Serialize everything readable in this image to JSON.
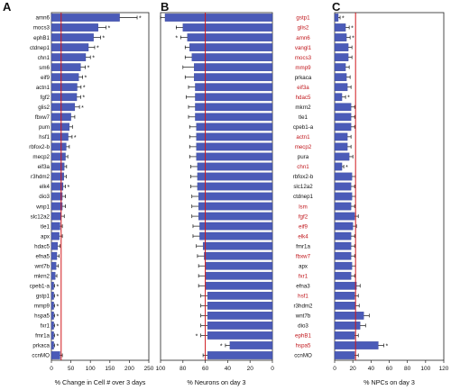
{
  "chart_data": [
    {
      "type": "bar",
      "panel": "A",
      "orientation": "horizontal",
      "xlabel": "% Change in Cell # over 3 days",
      "xlim": [
        0,
        250
      ],
      "xticks": [
        "0",
        "50",
        "100",
        "150",
        "200",
        "250"
      ],
      "reference_line": 25,
      "categories": [
        "amn6",
        "mocs3",
        "ephB1",
        "ctdnep1",
        "chn1",
        "sm6",
        "eif9",
        "actn1",
        "fgf2",
        "glis2",
        "fbxw7",
        "pum",
        "hsf1",
        "rbfox2-b",
        "mecp2",
        "eif3a",
        "r3hdm2",
        "elk4",
        "dio3",
        "wnp1",
        "slc12a2",
        "tle1",
        "apx",
        "hdac5",
        "efna5",
        "wnt7b",
        "mkrn2",
        "cpeb1-a",
        "gstp1",
        "mmp9",
        "hspa5",
        "fxr1",
        "fmr1a",
        "prkaca",
        "ccnMO"
      ],
      "values": [
        175,
        120,
        108,
        95,
        88,
        75,
        70,
        66,
        65,
        60,
        50,
        46,
        43,
        38,
        36,
        33,
        32,
        30,
        28,
        28,
        25,
        22,
        20,
        16,
        14,
        12,
        10,
        6,
        6,
        6,
        6,
        6,
        6,
        6,
        22
      ],
      "errors": [
        45,
        20,
        18,
        16,
        12,
        12,
        10,
        10,
        10,
        12,
        10,
        8,
        10,
        8,
        6,
        6,
        6,
        6,
        8,
        8,
        8,
        6,
        8,
        6,
        6,
        6,
        4,
        2,
        2,
        2,
        2,
        2,
        2,
        2,
        6
      ],
      "stars": [
        true,
        true,
        true,
        true,
        true,
        true,
        true,
        true,
        true,
        true,
        false,
        false,
        true,
        false,
        false,
        false,
        false,
        true,
        false,
        false,
        false,
        false,
        false,
        false,
        false,
        false,
        false,
        true,
        true,
        true,
        true,
        true,
        true,
        true,
        false
      ]
    },
    {
      "type": "bar",
      "panel": "B",
      "orientation": "horizontal-reversed",
      "xlabel": "% Neurons on day 3",
      "xlim": [
        0,
        100
      ],
      "xticks": [
        "100",
        "80",
        "60",
        "40",
        "20",
        "0"
      ],
      "reference_line": 60,
      "categories": [
        "gstp1",
        "glis2",
        "amn6",
        "vangl1",
        "mocs3",
        "mmp9",
        "prkaca",
        "eif3a",
        "hdac5",
        "mkrn2",
        "tle1",
        "cpeb1-a",
        "actn1",
        "mecp2",
        "pura",
        "chn1",
        "rbfox2-b",
        "slc12a2",
        "ctdnep1",
        "lsm",
        "fgf2",
        "eif9",
        "elk4",
        "fmr1a",
        "fbxw7",
        "apx",
        "fxr1",
        "efna3",
        "hsf1",
        "r3hdm2",
        "wnt7b",
        "dio3",
        "ephB1",
        "hspa5",
        "ccnMO"
      ],
      "red_labels": [
        true,
        true,
        true,
        true,
        true,
        true,
        false,
        true,
        true,
        false,
        false,
        false,
        true,
        true,
        false,
        true,
        false,
        false,
        false,
        true,
        true,
        true,
        true,
        false,
        true,
        false,
        true,
        false,
        true,
        false,
        false,
        false,
        true,
        true,
        false
      ],
      "values": [
        96,
        80,
        76,
        74,
        72,
        70,
        70,
        69,
        69,
        69,
        69,
        68,
        68,
        68,
        68,
        67,
        67,
        67,
        66,
        66,
        66,
        65,
        65,
        62,
        61,
        60,
        60,
        60,
        58,
        58,
        58,
        58,
        58,
        38,
        58
      ],
      "errors": [
        4,
        6,
        6,
        4,
        6,
        10,
        8,
        6,
        8,
        6,
        6,
        6,
        6,
        6,
        6,
        6,
        6,
        6,
        6,
        6,
        6,
        6,
        6,
        6,
        6,
        6,
        6,
        6,
        6,
        6,
        6,
        6,
        6,
        4,
        4
      ],
      "stars": [
        false,
        false,
        true,
        false,
        false,
        false,
        false,
        false,
        false,
        false,
        false,
        false,
        false,
        false,
        false,
        false,
        false,
        false,
        false,
        false,
        false,
        false,
        false,
        false,
        false,
        false,
        false,
        false,
        false,
        false,
        false,
        false,
        true,
        true,
        false
      ]
    },
    {
      "type": "bar",
      "panel": "C",
      "orientation": "horizontal",
      "xlabel": "% NPCs on day 3",
      "xlim": [
        0,
        120
      ],
      "xticks": [
        "0",
        "20",
        "40",
        "60",
        "80",
        "100",
        "120"
      ],
      "reference_line": 23,
      "categories": [
        "gstp1",
        "glis2",
        "amn6",
        "vangl1",
        "mocs3",
        "mmp9",
        "prkaca",
        "eif3a",
        "hdac5",
        "mkrn2",
        "tle1",
        "cpeb1-a",
        "actn1",
        "mecp2",
        "pura",
        "chn1",
        "rbfox2-b",
        "slc12a2",
        "ctdnep1",
        "lsm",
        "fgf2",
        "eif9",
        "elk4",
        "fmr1a",
        "fbxw7",
        "apx",
        "fxr1",
        "efna3",
        "hsf1",
        "r3hdm2",
        "wnt7b",
        "dio3",
        "ephB1",
        "hspa5",
        "ccnMO"
      ],
      "values": [
        4,
        12,
        13,
        15,
        15,
        12,
        13,
        14,
        8,
        18,
        18,
        18,
        14,
        14,
        16,
        8,
        19,
        18,
        19,
        18,
        22,
        20,
        18,
        18,
        18,
        19,
        18,
        24,
        22,
        23,
        32,
        28,
        22,
        48,
        22
      ],
      "errors": [
        2,
        4,
        4,
        4,
        4,
        4,
        4,
        4,
        4,
        4,
        4,
        4,
        4,
        4,
        4,
        2,
        4,
        4,
        4,
        4,
        4,
        4,
        4,
        4,
        4,
        4,
        4,
        4,
        4,
        4,
        6,
        6,
        4,
        6,
        4
      ],
      "stars": [
        true,
        true,
        true,
        false,
        false,
        false,
        false,
        false,
        true,
        false,
        false,
        false,
        false,
        false,
        false,
        true,
        false,
        false,
        false,
        false,
        false,
        false,
        false,
        false,
        false,
        false,
        false,
        false,
        false,
        false,
        false,
        false,
        false,
        true,
        false
      ]
    }
  ]
}
